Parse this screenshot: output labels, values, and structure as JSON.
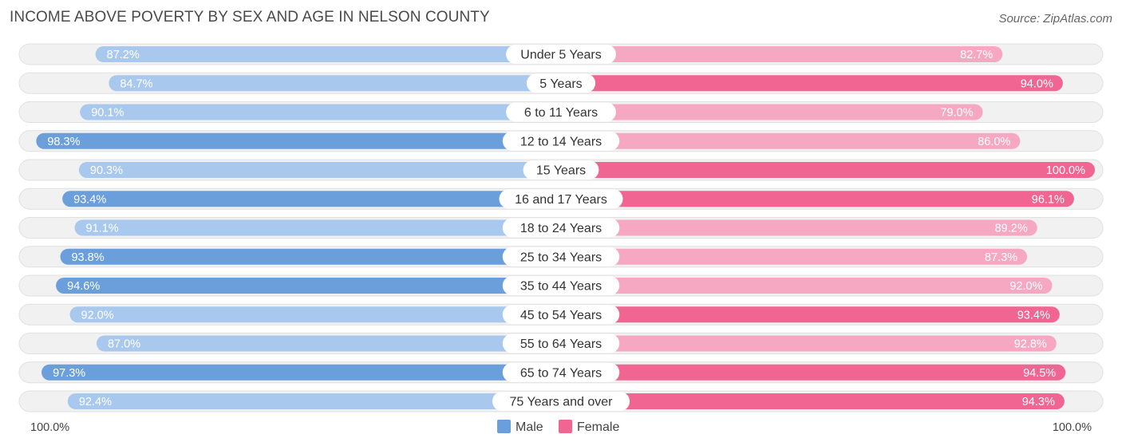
{
  "header": {
    "title": "INCOME ABOVE POVERTY BY SEX AND AGE IN NELSON COUNTY",
    "source": "Source: ZipAtlas.com"
  },
  "colors": {
    "male_strong": "#6a9fdc",
    "male_light": "#a9c8ee",
    "female_strong": "#f06592",
    "female_light": "#f6a8c2",
    "track": "#f1f1f1",
    "track_border": "#e0e0e0"
  },
  "chart_data": {
    "type": "bar",
    "orientation": "horizontal-diverging",
    "title": "INCOME ABOVE POVERTY BY SEX AND AGE IN NELSON COUNTY",
    "categories": [
      "Under 5 Years",
      "5 Years",
      "6 to 11 Years",
      "12 to 14 Years",
      "15 Years",
      "16 and 17 Years",
      "18 to 24 Years",
      "25 to 34 Years",
      "35 to 44 Years",
      "45 to 54 Years",
      "55 to 64 Years",
      "65 to 74 Years",
      "75 Years and over"
    ],
    "series": [
      {
        "name": "Male",
        "values": [
          87.2,
          84.7,
          90.1,
          98.3,
          90.3,
          93.4,
          91.1,
          93.8,
          94.6,
          92.0,
          87.0,
          97.3,
          92.4
        ],
        "labels": [
          "87.2%",
          "84.7%",
          "90.1%",
          "98.3%",
          "90.3%",
          "93.4%",
          "91.1%",
          "93.8%",
          "94.6%",
          "92.0%",
          "87.0%",
          "97.3%",
          "92.4%"
        ]
      },
      {
        "name": "Female",
        "values": [
          82.7,
          94.0,
          79.0,
          86.0,
          100.0,
          96.1,
          89.2,
          87.3,
          92.0,
          93.4,
          92.8,
          94.5,
          94.3
        ],
        "labels": [
          "82.7%",
          "94.0%",
          "79.0%",
          "86.0%",
          "100.0%",
          "96.1%",
          "89.2%",
          "87.3%",
          "92.0%",
          "93.4%",
          "92.8%",
          "94.5%",
          "94.3%"
        ]
      }
    ],
    "xlim": [
      0,
      100
    ],
    "axis_left_label": "100.0%",
    "axis_right_label": "100.0%",
    "legend": [
      "Male",
      "Female"
    ],
    "legend_position": "bottom-center"
  }
}
